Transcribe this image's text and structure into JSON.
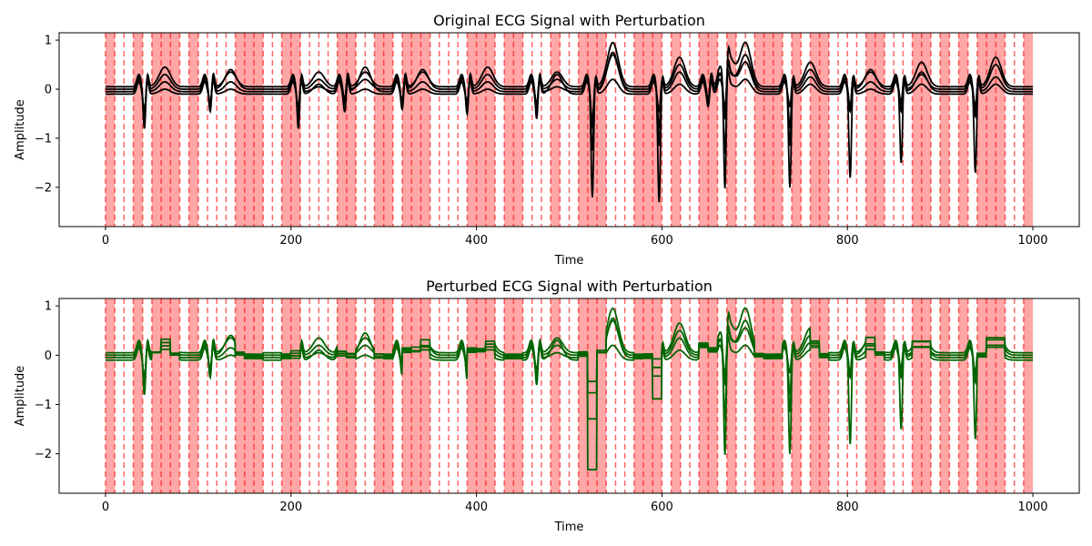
{
  "chart_data": [
    {
      "type": "line",
      "title": "Original ECG Signal with Perturbation",
      "xlabel": "Time",
      "ylabel": "Amplitude",
      "xlim": [
        -50,
        1050
      ],
      "ylim": [
        -2.8,
        1.15
      ],
      "xticks": [
        0,
        200,
        400,
        600,
        800,
        1000
      ],
      "yticks": [
        1,
        0,
        -1,
        -2
      ],
      "grid": false,
      "line_color": "#000000",
      "beats": [
        42,
        113,
        208,
        258,
        320,
        390,
        465,
        525,
        597,
        650,
        668,
        738,
        803,
        858,
        938
      ],
      "series": [
        {
          "offset": 0.05,
          "amps": [
            -0.9,
            -0.5,
            -0.9,
            -0.4,
            -0.5,
            -0.6,
            -0.7,
            -2.3,
            -2.4,
            -0.4,
            -2.6,
            -2.1,
            -1.9,
            -1.6,
            -1.8
          ],
          "ts": [
            0.4,
            0.3,
            0.3,
            0.3,
            0.3,
            0.4,
            0.3,
            0.9,
            0.6,
            0.6,
            0.9,
            0.5,
            0.3,
            0.5,
            0.6
          ]
        },
        {
          "offset": 0.0,
          "amps": [
            -0.6,
            -0.5,
            -0.7,
            -0.3,
            -0.3,
            -0.5,
            -0.5,
            -1.3,
            -1.2,
            -0.3,
            -1.6,
            -1.2,
            -0.5,
            -0.5,
            -0.6
          ],
          "ts": [
            0.3,
            0.4,
            0.2,
            0.2,
            0.4,
            0.3,
            0.2,
            0.7,
            0.5,
            0.3,
            0.7,
            0.4,
            0.4,
            0.3,
            0.5
          ]
        },
        {
          "offset": -0.05,
          "amps": [
            -0.5,
            -0.3,
            -0.5,
            -0.2,
            -0.4,
            -0.3,
            -0.3,
            -0.8,
            -0.8,
            -0.2,
            -0.9,
            -0.8,
            -0.4,
            -0.3,
            -0.4
          ],
          "ts": [
            0.2,
            0.2,
            0.1,
            0.5,
            0.2,
            0.2,
            0.1,
            0.8,
            0.4,
            0.4,
            0.6,
            0.3,
            0.2,
            0.4,
            0.3
          ]
        },
        {
          "offset": -0.1,
          "amps": [
            -0.4,
            -0.2,
            -0.3,
            -0.4,
            -0.2,
            -0.2,
            -0.4,
            -0.6,
            -0.4,
            -0.3,
            -0.5,
            -0.3,
            -0.3,
            -0.2,
            -0.3
          ],
          "ts": [
            0.1,
            0.1,
            0.2,
            0.1,
            0.1,
            0.1,
            0.4,
            0.3,
            0.2,
            0.2,
            0.3,
            0.2,
            0.1,
            0.2,
            0.2
          ]
        }
      ],
      "shaded_regions": [
        [
          0,
          10
        ],
        [
          30,
          40
        ],
        [
          50,
          80
        ],
        [
          90,
          100
        ],
        [
          140,
          170
        ],
        [
          190,
          210
        ],
        [
          250,
          270
        ],
        [
          290,
          310
        ],
        [
          320,
          350
        ],
        [
          390,
          420
        ],
        [
          430,
          450
        ],
        [
          480,
          490
        ],
        [
          510,
          540
        ],
        [
          570,
          600
        ],
        [
          610,
          620
        ],
        [
          640,
          660
        ],
        [
          670,
          680
        ],
        [
          700,
          730
        ],
        [
          740,
          750
        ],
        [
          760,
          780
        ],
        [
          820,
          840
        ],
        [
          870,
          890
        ],
        [
          900,
          910
        ],
        [
          920,
          930
        ],
        [
          940,
          970
        ],
        [
          990,
          1000
        ]
      ],
      "dashed_lines": [
        0,
        10,
        20,
        30,
        40,
        50,
        60,
        70,
        80,
        90,
        100,
        110,
        120,
        130,
        140,
        150,
        160,
        170,
        180,
        190,
        200,
        210,
        220,
        230,
        240,
        250,
        260,
        270,
        280,
        290,
        300,
        310,
        320,
        330,
        340,
        350,
        360,
        370,
        380,
        390,
        400,
        410,
        420,
        430,
        440,
        450,
        460,
        470,
        480,
        490,
        500,
        510,
        520,
        530,
        540,
        550,
        560,
        570,
        580,
        590,
        600,
        610,
        620,
        630,
        640,
        650,
        660,
        670,
        680,
        690,
        700,
        710,
        720,
        730,
        740,
        750,
        760,
        770,
        780,
        790,
        800,
        810,
        820,
        830,
        840,
        850,
        860,
        870,
        880,
        890,
        900,
        910,
        920,
        930,
        940,
        950,
        960,
        970,
        980,
        990
      ]
    },
    {
      "type": "line",
      "title": "Perturbed ECG Signal with Perturbation",
      "xlabel": "Time",
      "ylabel": "Amplitude",
      "xlim": [
        -50,
        1050
      ],
      "ylim": [
        -2.8,
        1.15
      ],
      "xticks": [
        0,
        200,
        400,
        600,
        800,
        1000
      ],
      "yticks": [
        1,
        0,
        -1,
        -2
      ],
      "grid": false,
      "line_color": "#006400",
      "note_same_as_original": true
    }
  ]
}
